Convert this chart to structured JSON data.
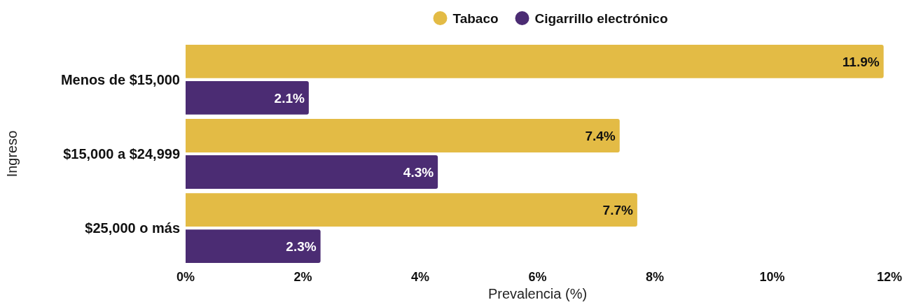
{
  "chart_data": {
    "type": "bar",
    "orientation": "horizontal",
    "categories": [
      "Menos de $15,000",
      "$15,000 a $24,999",
      "$25,000 o más"
    ],
    "series": [
      {
        "name": "Tabaco",
        "color": "#e3bb45",
        "values": [
          11.9,
          7.4,
          7.7
        ],
        "value_labels": [
          "11.9%",
          "7.4%",
          "7.7%"
        ]
      },
      {
        "name": "Cigarrillo electrónico",
        "color": "#4b2c73",
        "values": [
          2.1,
          4.3,
          2.3
        ],
        "value_labels": [
          "2.1%",
          "4.3%",
          "2.3%"
        ]
      }
    ],
    "xlim": [
      0,
      12
    ],
    "xticks": [
      {
        "value": 0,
        "label": "0%"
      },
      {
        "value": 2,
        "label": "2%"
      },
      {
        "value": 4,
        "label": "4%"
      },
      {
        "value": 6,
        "label": "6%"
      },
      {
        "value": 8,
        "label": "8%"
      },
      {
        "value": 10,
        "label": "10%"
      },
      {
        "value": 12,
        "label": "12%"
      }
    ],
    "xlabel": "Prevalencia (%)",
    "ylabel": "Ingreso",
    "legend": "top",
    "grid": false
  }
}
